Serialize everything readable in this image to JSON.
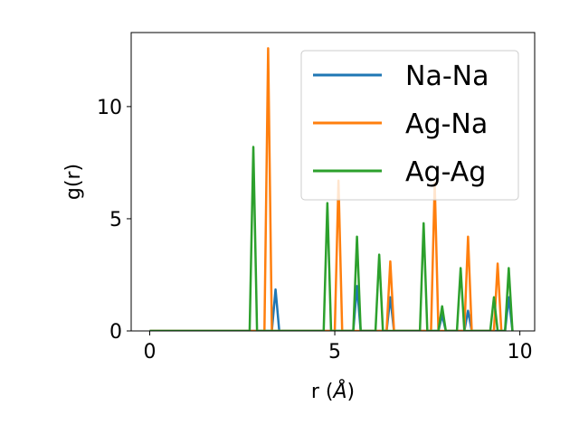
{
  "chart_data": {
    "type": "line",
    "xlabel_main": "r (",
    "xlabel_unit": "Å",
    "xlabel_end": ")",
    "ylabel": "g(r)",
    "xlim": [
      -0.5,
      10.4
    ],
    "ylim": [
      0,
      13.3
    ],
    "xticks": [
      0,
      5,
      10
    ],
    "yticks": [
      0,
      5,
      10
    ],
    "xtick_labels": [
      "0",
      "5",
      "10"
    ],
    "ytick_labels": [
      "0",
      "5",
      "10"
    ],
    "grid": false,
    "legend_position": "top-right",
    "series": [
      {
        "name": "Na-Na",
        "color": "#1f77b4",
        "x": [
          0,
          3.3,
          3.4,
          3.5,
          5.5,
          5.6,
          5.7,
          6.4,
          6.5,
          6.6,
          7.8,
          7.9,
          8.0,
          8.5,
          8.6,
          8.7,
          9.6,
          9.7,
          9.8
        ],
        "y": [
          0,
          0,
          1.85,
          0,
          0,
          2.0,
          0,
          0,
          1.5,
          0,
          0,
          0.7,
          0,
          0,
          0.9,
          0,
          0,
          1.5,
          0
        ]
      },
      {
        "name": "Ag-Na",
        "color": "#ff7f0e",
        "x": [
          0,
          3.1,
          3.2,
          3.3,
          5.0,
          5.1,
          5.2,
          6.4,
          6.5,
          6.6,
          7.6,
          7.7,
          7.8,
          8.5,
          8.6,
          8.7,
          9.3,
          9.4,
          9.5
        ],
        "y": [
          0,
          0,
          12.6,
          0,
          0,
          6.7,
          0,
          0,
          3.1,
          0,
          0,
          6.6,
          0,
          0,
          4.2,
          0,
          0,
          3.0,
          0
        ]
      },
      {
        "name": "Ag-Ag",
        "color": "#2ca02c",
        "x": [
          0,
          2.7,
          2.8,
          2.9,
          4.7,
          4.8,
          4.9,
          5.5,
          5.6,
          5.7,
          6.1,
          6.2,
          6.3,
          7.3,
          7.4,
          7.5,
          7.8,
          7.9,
          8.0,
          8.3,
          8.4,
          8.5,
          9.2,
          9.3,
          9.4,
          9.6,
          9.7,
          9.8
        ],
        "y": [
          0,
          0,
          8.2,
          0,
          0,
          5.7,
          0,
          0,
          4.2,
          0,
          0,
          3.4,
          0,
          0,
          4.8,
          0,
          0,
          1.1,
          0,
          0,
          2.8,
          0,
          0,
          1.5,
          0,
          0,
          2.8,
          0
        ]
      }
    ]
  }
}
